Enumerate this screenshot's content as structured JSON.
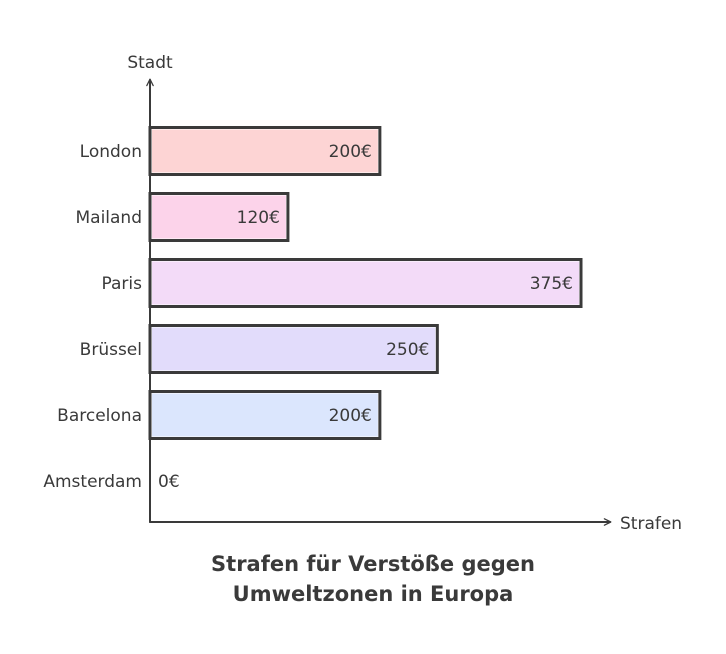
{
  "chart_data": {
    "type": "bar",
    "orientation": "horizontal",
    "title": "Strafen für Verstöße gegen Umweltzonen in Europa",
    "title_lines": [
      "Strafen für Verstöße gegen",
      "Umweltzonen in Europa"
    ],
    "xlabel": "Strafen",
    "ylabel": "Stadt",
    "xlim": [
      0,
      375
    ],
    "grid": false,
    "categories": [
      "London",
      "Mailand",
      "Paris",
      "Brüssel",
      "Barcelona",
      "Amsterdam"
    ],
    "values": [
      200,
      120,
      375,
      250,
      200,
      0
    ],
    "value_labels": [
      "200€",
      "120€",
      "375€",
      "250€",
      "200€",
      "0€"
    ],
    "colors": [
      "#fdd4d4",
      "#fcd3ea",
      "#f3dbf8",
      "#e2dcfb",
      "#dbe6fd",
      "#e8eef8"
    ]
  }
}
